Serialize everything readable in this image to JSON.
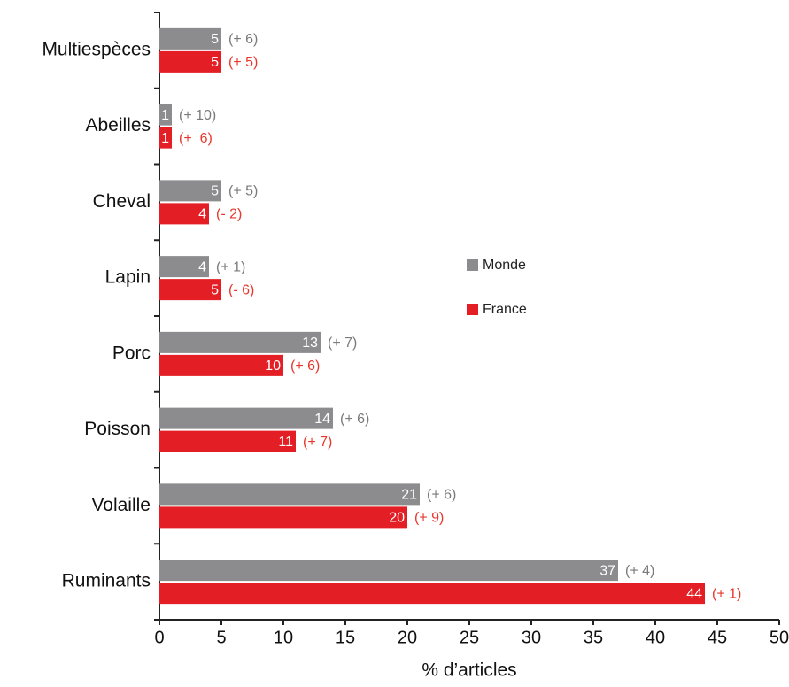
{
  "chart_data": {
    "type": "bar",
    "orientation": "horizontal",
    "categories": [
      "Multiespèces",
      "Abeilles",
      "Cheval",
      "Lapin",
      "Porc",
      "Poisson",
      "Volaille",
      "Ruminants"
    ],
    "series": [
      {
        "name": "Monde",
        "color": "#8c8c8e",
        "label_color": "#7a7a7a",
        "values": [
          5,
          1,
          5,
          4,
          13,
          14,
          21,
          37
        ],
        "changes": [
          "(+ 6)",
          "(+ 10)",
          "(+ 5)",
          "(+ 1)",
          "(+ 7)",
          "(+ 6)",
          "(+ 6)",
          "(+ 4)"
        ]
      },
      {
        "name": "France",
        "color": "#e31e24",
        "label_color": "#e8372d",
        "values": [
          5,
          1,
          4,
          5,
          10,
          11,
          20,
          44
        ],
        "changes": [
          "(+ 5)",
          "(+  6)",
          "(- 2)",
          "(- 6)",
          "(+ 6)",
          "(+ 7)",
          "(+ 9)",
          "(+ 1)"
        ]
      }
    ],
    "xlabel": "% d’articles",
    "xlim": [
      0,
      50
    ],
    "xticks": [
      0,
      5,
      10,
      15,
      20,
      25,
      30,
      35,
      40,
      45,
      50
    ],
    "legend": "right"
  }
}
